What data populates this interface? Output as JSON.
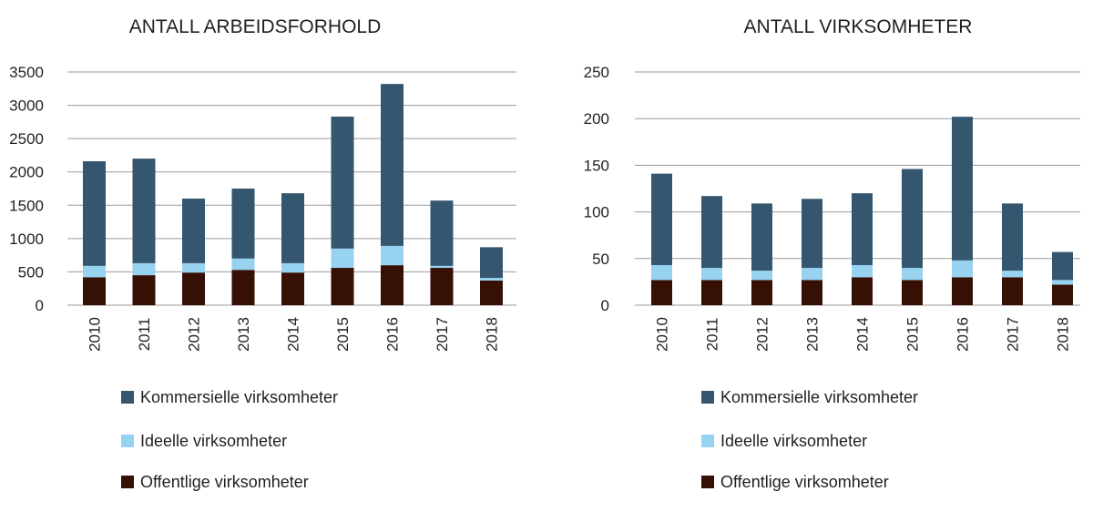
{
  "colors": {
    "kommersielle": "#34566f",
    "ideelle": "#97d2f0",
    "offentlige": "#360f05",
    "grid": "#9a9a9a",
    "text": "#231f20"
  },
  "chart_data": [
    {
      "type": "bar",
      "stacked": true,
      "title": "ANTALL ARBEIDSFORHOLD",
      "categories": [
        "2010",
        "2011",
        "2012",
        "2013",
        "2014",
        "2015",
        "2016",
        "2017",
        "2018"
      ],
      "ylim": [
        0,
        3500
      ],
      "yticks": [
        0,
        500,
        1000,
        1500,
        2000,
        2500,
        3000,
        3500
      ],
      "grid": true,
      "legend_position": "bottom-left",
      "series": [
        {
          "name": "Offentlige virksomheter",
          "values": [
            420,
            450,
            490,
            530,
            490,
            560,
            600,
            560,
            370
          ]
        },
        {
          "name": "Ideelle virksomheter",
          "values": [
            170,
            180,
            140,
            170,
            140,
            290,
            290,
            30,
            40
          ]
        },
        {
          "name": "Kommersielle virksomheter",
          "values": [
            1570,
            1570,
            970,
            1050,
            1050,
            1980,
            2430,
            980,
            460
          ]
        }
      ],
      "legend": [
        "Kommersielle virksomheter",
        "Ideelle virksomheter",
        "Offentlige virksomheter"
      ]
    },
    {
      "type": "bar",
      "stacked": true,
      "title": "ANTALL VIRKSOMHETER",
      "categories": [
        "2010",
        "2011",
        "2012",
        "2013",
        "2014",
        "2015",
        "2016",
        "2017",
        "2018"
      ],
      "ylim": [
        0,
        250
      ],
      "yticks": [
        0,
        50,
        100,
        150,
        200,
        250
      ],
      "grid": true,
      "legend_position": "bottom-left",
      "series": [
        {
          "name": "Offentlige virksomheter",
          "values": [
            27,
            27,
            27,
            27,
            30,
            27,
            30,
            30,
            22
          ]
        },
        {
          "name": "Ideelle virksomheter",
          "values": [
            16,
            13,
            10,
            13,
            13,
            13,
            18,
            7,
            5
          ]
        },
        {
          "name": "Kommersielle virksomheter",
          "values": [
            98,
            77,
            72,
            74,
            77,
            106,
            154,
            72,
            30
          ]
        }
      ],
      "legend": [
        "Kommersielle virksomheter",
        "Ideelle virksomheter",
        "Offentlige virksomheter"
      ]
    }
  ]
}
